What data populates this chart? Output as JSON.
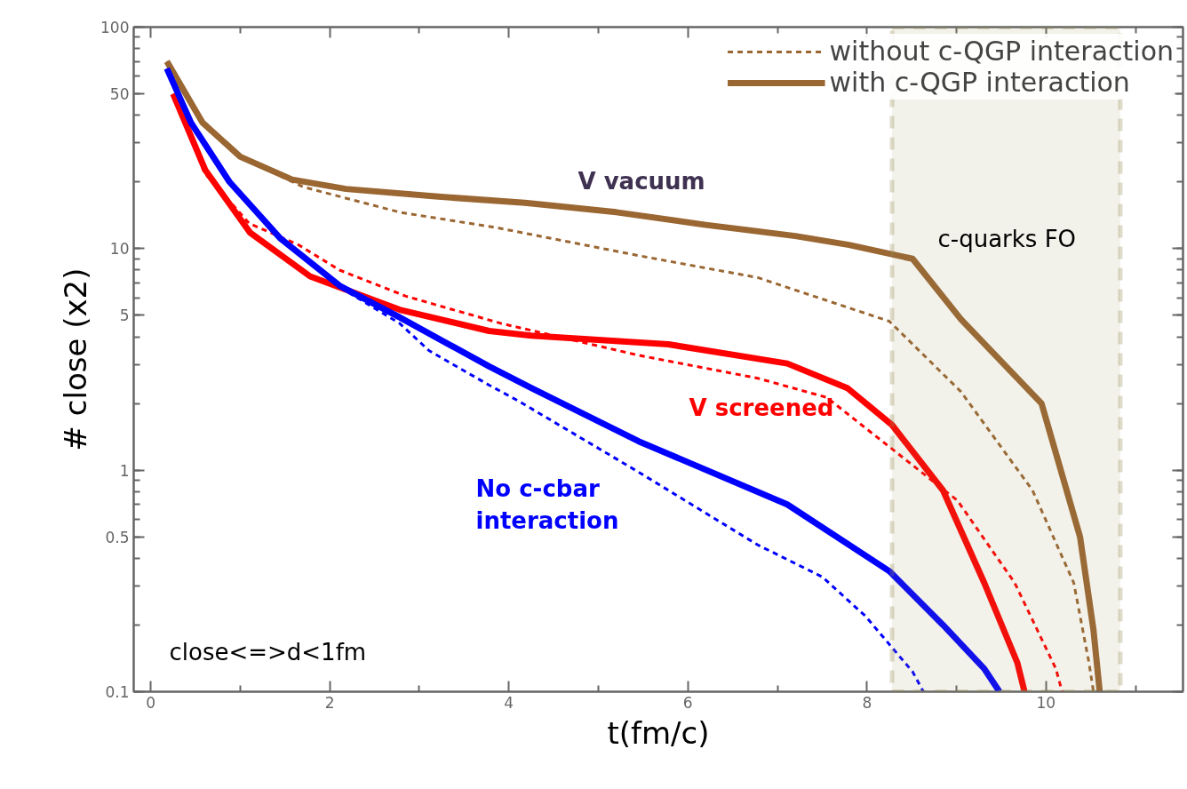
{
  "chart_data": {
    "type": "line",
    "xlabel": "t(fm/c)",
    "ylabel": "# close (x2)",
    "log": "y",
    "xlim": [
      -0.19,
      11.53
    ],
    "ylim": [
      0.1,
      100
    ],
    "xticks": [
      0,
      2,
      4,
      6,
      8,
      10
    ],
    "yticks": [
      0.1,
      0.5,
      1,
      5,
      10,
      50,
      100
    ],
    "grid": false,
    "legend": "top right",
    "marker": "none",
    "series": [
      {
        "name": "without c-QGP interaction",
        "color": "#9a6632",
        "line_style": "dashed",
        "x": [
          0.18,
          0.58,
          1.0,
          1.7,
          2.78,
          3.88,
          5.45,
          6.78,
          8.25,
          9.05,
          9.85,
          10.31,
          10.48,
          10.53
        ],
        "values": [
          70,
          37,
          26,
          19,
          14.6,
          12.4,
          9.3,
          7.4,
          4.7,
          2.26,
          0.81,
          0.31,
          0.135,
          0.1
        ]
      },
      {
        "name": "with c-QGP interaction",
        "color": "#9a6632",
        "line_style": "solid",
        "x": [
          0.18,
          0.58,
          1.0,
          1.58,
          2.18,
          3.18,
          4.18,
          5.2,
          6.2,
          7.2,
          7.8,
          8.51,
          9.05,
          9.95,
          10.38,
          10.53,
          10.6
        ],
        "values": [
          70,
          37,
          26,
          20.5,
          18.6,
          17.2,
          16.1,
          14.6,
          12.8,
          11.4,
          10.4,
          9.0,
          4.8,
          2.0,
          0.5,
          0.19,
          0.1
        ]
      },
      {
        "color": "#ff0000",
        "line_style": "dashed",
        "x": [
          0.25,
          0.6,
          1.1,
          1.65,
          2.11,
          2.85,
          3.91,
          5.45,
          6.78,
          7.55,
          9.01,
          9.65,
          10.11,
          10.18
        ],
        "values": [
          50,
          22,
          13,
          10.4,
          8.0,
          6.1,
          4.6,
          3.3,
          2.6,
          2.13,
          0.73,
          0.31,
          0.127,
          0.1
        ]
      },
      {
        "color": "#ff0000",
        "line_style": "solid",
        "x": [
          0.25,
          0.61,
          1.11,
          1.78,
          2.78,
          3.78,
          4.25,
          5.78,
          7.11,
          7.78,
          8.28,
          8.85,
          9.31,
          9.68,
          9.76
        ],
        "values": [
          50,
          22.6,
          11.8,
          7.5,
          5.3,
          4.25,
          4.05,
          3.7,
          3.03,
          2.35,
          1.6,
          0.81,
          0.31,
          0.135,
          0.1
        ]
      },
      {
        "color": "#0000ff",
        "line_style": "dashed",
        "x": [
          0.18,
          0.45,
          0.88,
          1.45,
          2.11,
          2.78,
          3.11,
          3.78,
          4.11,
          5.45,
          6.78,
          7.5,
          7.98,
          8.51,
          8.63
        ],
        "values": [
          65,
          37,
          20,
          11.1,
          6.7,
          4.6,
          3.46,
          2.42,
          2.05,
          0.98,
          0.46,
          0.33,
          0.22,
          0.123,
          0.1
        ]
      },
      {
        "color": "#0000ff",
        "line_style": "solid",
        "x": [
          0.18,
          0.45,
          0.88,
          1.45,
          2.11,
          2.78,
          3.78,
          4.25,
          5.45,
          7.11,
          8.25,
          8.85,
          9.31,
          9.48
        ],
        "values": [
          65,
          37,
          20,
          11.1,
          6.8,
          4.9,
          2.94,
          2.35,
          1.35,
          0.7,
          0.35,
          0.2,
          0.127,
          0.1
        ]
      }
    ],
    "annotations": [
      "V vacuum",
      "V screened",
      "No c-cbar\ninteraction",
      "c-quarks FO",
      "close<=>d<1fm"
    ],
    "bands": [
      {
        "axis": "x",
        "from": 8.28,
        "to": 10.83,
        "color": "#948a54"
      }
    ]
  }
}
